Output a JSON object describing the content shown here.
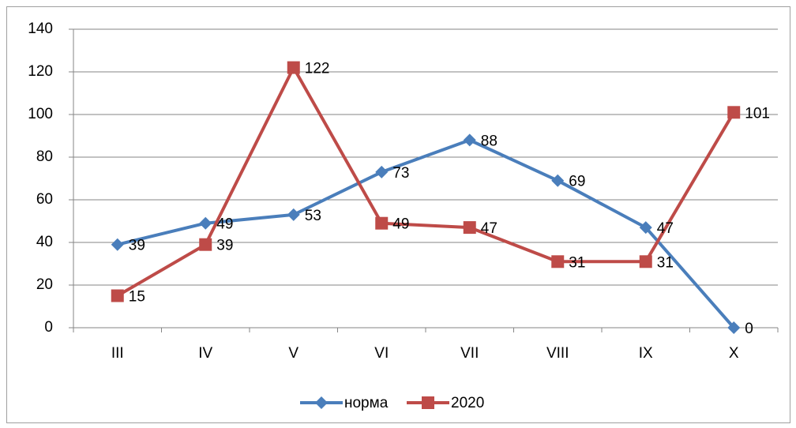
{
  "chart_data": {
    "type": "line",
    "categories": [
      "III",
      "IV",
      "V",
      "VI",
      "VII",
      "VIII",
      "IX",
      "X"
    ],
    "series": [
      {
        "name": "норма",
        "color": "#4a7ebb",
        "marker": "diamond",
        "values": [
          39,
          49,
          53,
          73,
          88,
          69,
          47,
          0
        ]
      },
      {
        "name": "2020",
        "color": "#be4b48",
        "marker": "square",
        "values": [
          15,
          39,
          122,
          49,
          47,
          31,
          31,
          101
        ]
      }
    ],
    "ylim": [
      0,
      140
    ],
    "yticks": [
      0,
      20,
      40,
      60,
      80,
      100,
      120,
      140
    ],
    "grid": true,
    "legend": "bottom"
  }
}
